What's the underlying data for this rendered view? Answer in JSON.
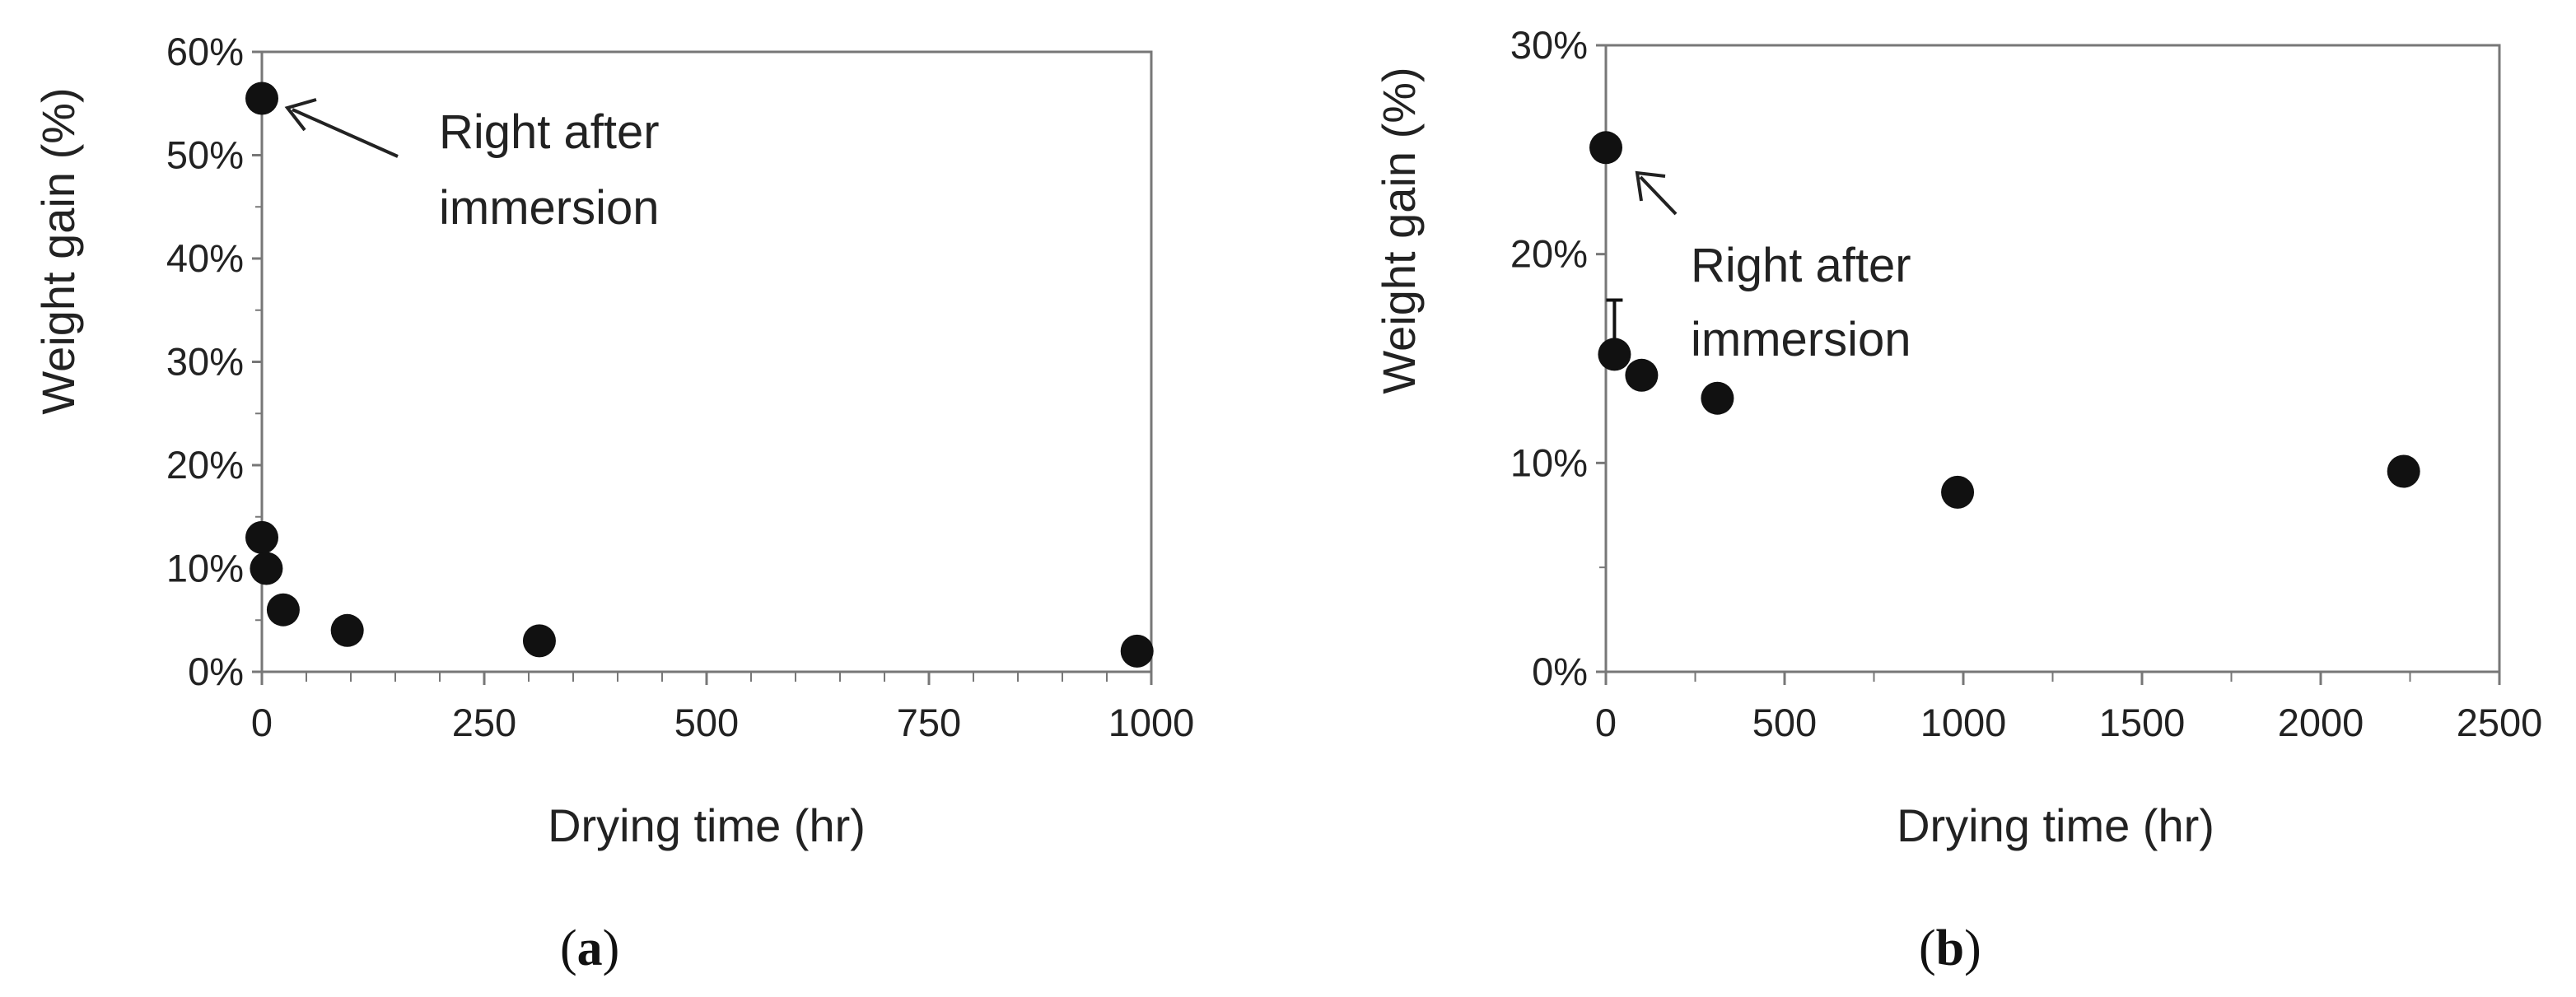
{
  "chart_data": [
    {
      "type": "scatter",
      "panel_label": "(a)",
      "panel_letter": "a",
      "xlabel": "Drying time (hr)",
      "ylabel": "Weight gain (%)",
      "xlim": [
        0,
        1000
      ],
      "ylim": [
        0,
        60
      ],
      "xticks": [
        0,
        250,
        500,
        750,
        1000
      ],
      "yticks": [
        0,
        10,
        20,
        30,
        40,
        50,
        60
      ],
      "y_format": "percent",
      "grid": false,
      "annotation": {
        "lines": [
          "Right after",
          "immersion"
        ],
        "points_to_index": 0
      },
      "series": [
        {
          "points": [
            {
              "x": 0,
              "y": 55.5
            },
            {
              "x": 0,
              "y": 13.0
            },
            {
              "x": 5,
              "y": 10.0
            },
            {
              "x": 24,
              "y": 6.0
            },
            {
              "x": 96,
              "y": 4.0
            },
            {
              "x": 312,
              "y": 3.0
            },
            {
              "x": 984,
              "y": 2.0
            }
          ]
        }
      ]
    },
    {
      "type": "scatter",
      "panel_label": "(b)",
      "panel_letter": "b",
      "xlabel": "Drying time (hr)",
      "ylabel": "Weight gain (%)",
      "xlim": [
        0,
        2500
      ],
      "ylim": [
        0,
        30
      ],
      "xticks": [
        0,
        500,
        1000,
        1500,
        2000,
        2500
      ],
      "yticks": [
        0,
        10,
        20,
        30
      ],
      "y_format": "percent",
      "grid": false,
      "annotation": {
        "lines": [
          "Right after",
          "immersion"
        ],
        "points_to_index": 0
      },
      "series": [
        {
          "points": [
            {
              "x": 0,
              "y": 25.1
            },
            {
              "x": 24,
              "y": 15.2,
              "error_upper": 17.8
            },
            {
              "x": 100,
              "y": 14.2
            },
            {
              "x": 312,
              "y": 13.1
            },
            {
              "x": 984,
              "y": 8.6
            },
            {
              "x": 2232,
              "y": 9.6
            }
          ]
        }
      ]
    }
  ]
}
